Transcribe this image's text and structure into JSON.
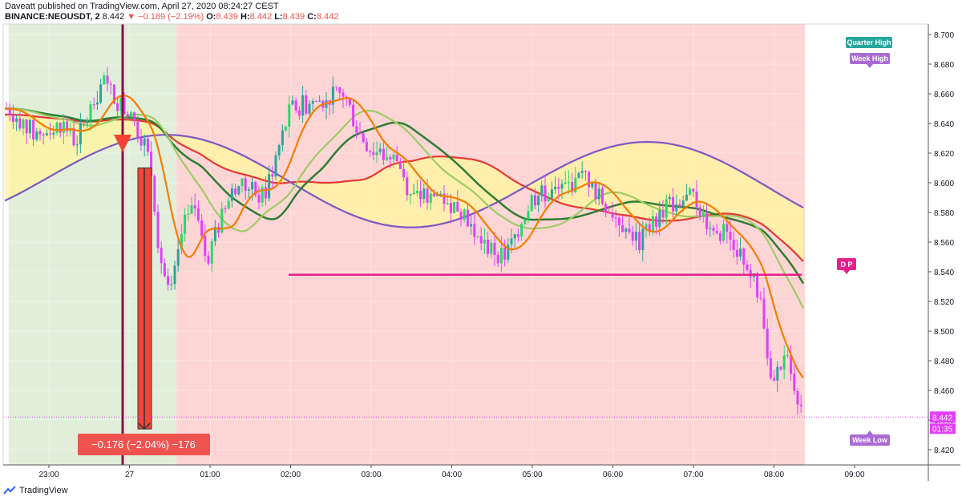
{
  "header": {
    "publisher_line": "Daveatt published on TradingView.com, April 27, 2020 08:24:27 CEST",
    "symbol": "BINANCE:NEOUSDT, 2",
    "last": "8.442",
    "change": "▼ −0.189 (−2.19%)",
    "o_label": "O:",
    "o": "8.439",
    "h_label": "H:",
    "h": "8.442",
    "l_label": "L:",
    "l": "8.439",
    "c_label": "C:",
    "c": "8.442"
  },
  "footer": {
    "brand": "TradingView"
  },
  "colors": {
    "up": "#26a69a",
    "up_alt": "#2bd66b",
    "down": "#e040fb",
    "bg_green": "#e1efda",
    "bg_red": "#fdd5d5",
    "ema_fast": "#f57c00",
    "ma_green": "#2e7d32",
    "ma_red": "#e53935",
    "ma_purple": "#7e57c2",
    "ma_olive": "#9ccc65",
    "cloud": "#fff59d",
    "dp_line": "#e91e8c",
    "marker_bar": "#f44336",
    "vline": "#880e4f"
  },
  "chart_data": {
    "type": "candlestick",
    "y_axis_ticks": [
      "8.700",
      "8.680",
      "8.660",
      "8.640",
      "8.620",
      "8.600",
      "8.580",
      "8.560",
      "8.540",
      "8.520",
      "8.500",
      "8.480",
      "8.460",
      "8.440",
      "8.420"
    ],
    "x_axis_ticks": [
      "23:00",
      "27",
      "01:00",
      "02:00",
      "03:00",
      "04:00",
      "05:00",
      "06:00",
      "07:00",
      "08:00",
      "09:00"
    ],
    "ylim": [
      8.41,
      8.705
    ],
    "price_path": [
      {
        "t": "22:30",
        "p": 8.65
      },
      {
        "t": "22:50",
        "p": 8.632
      },
      {
        "t": "23:10",
        "p": 8.64
      },
      {
        "t": "23:20",
        "p": 8.627
      },
      {
        "t": "23:40",
        "p": 8.668
      },
      {
        "t": "00:00",
        "p": 8.645
      },
      {
        "t": "00:10",
        "p": 8.63
      },
      {
        "t": "00:16",
        "p": 8.612
      },
      {
        "t": "00:22",
        "p": 8.555
      },
      {
        "t": "00:30",
        "p": 8.52
      },
      {
        "t": "00:40",
        "p": 8.57
      },
      {
        "t": "00:50",
        "p": 8.585
      },
      {
        "t": "00:58",
        "p": 8.55
      },
      {
        "t": "01:10",
        "p": 8.58
      },
      {
        "t": "01:20",
        "p": 8.6
      },
      {
        "t": "01:40",
        "p": 8.59
      },
      {
        "t": "01:50",
        "p": 8.62
      },
      {
        "t": "02:00",
        "p": 8.65
      },
      {
        "t": "02:20",
        "p": 8.655
      },
      {
        "t": "02:40",
        "p": 8.66
      },
      {
        "t": "02:50",
        "p": 8.635
      },
      {
        "t": "03:00",
        "p": 8.622
      },
      {
        "t": "03:20",
        "p": 8.615
      },
      {
        "t": "03:30",
        "p": 8.59
      },
      {
        "t": "03:50",
        "p": 8.592
      },
      {
        "t": "04:10",
        "p": 8.58
      },
      {
        "t": "04:20",
        "p": 8.56
      },
      {
        "t": "04:40",
        "p": 8.55
      },
      {
        "t": "05:00",
        "p": 8.59
      },
      {
        "t": "05:20",
        "p": 8.595
      },
      {
        "t": "05:40",
        "p": 8.605
      },
      {
        "t": "05:50",
        "p": 8.59
      },
      {
        "t": "06:10",
        "p": 8.57
      },
      {
        "t": "06:20",
        "p": 8.56
      },
      {
        "t": "06:40",
        "p": 8.585
      },
      {
        "t": "07:00",
        "p": 8.59
      },
      {
        "t": "07:10",
        "p": 8.575
      },
      {
        "t": "07:30",
        "p": 8.56
      },
      {
        "t": "07:40",
        "p": 8.545
      },
      {
        "t": "07:50",
        "p": 8.52
      },
      {
        "t": "07:55",
        "p": 8.48
      },
      {
        "t": "08:00",
        "p": 8.47
      },
      {
        "t": "08:10",
        "p": 8.48
      },
      {
        "t": "08:20",
        "p": 8.45
      },
      {
        "t": "08:24",
        "p": 8.442
      }
    ],
    "moving_averages": [
      {
        "name": "ema_fast",
        "points": [
          [
            8.65,
            "22:30"
          ]
        ]
      }
    ],
    "levels": {
      "dp_level": 8.538,
      "dp_label": "D P",
      "quarter_high_label": "Quarter High",
      "week_high_label": "Week High",
      "week_low_label": "Week Low",
      "current_price_label": "8.442",
      "countdown_label": "01:35"
    },
    "measure": {
      "label": "−0.176 (−2.04%) −176",
      "from": 8.61,
      "to": 8.434
    },
    "sessions": [
      {
        "color": "green",
        "from": "22:30",
        "to": "00:35"
      },
      {
        "color": "red",
        "from": "00:35",
        "to": "08:25"
      }
    ]
  }
}
